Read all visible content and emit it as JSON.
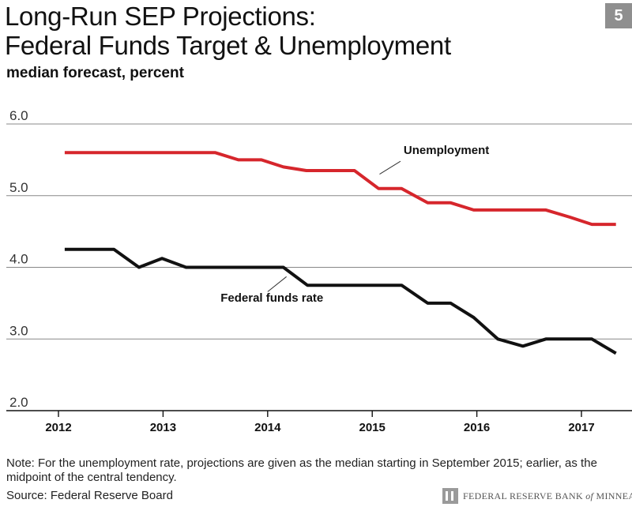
{
  "header": {
    "title": "Long-Run SEP Projections:\nFederal Funds Target & Unemployment",
    "badge": "5",
    "subtitle": "median forecast, percent"
  },
  "footer": {
    "note": "Note: For the unemployment rate, projections are given as the median starting in September 2015; earlier, as the midpoint of the central tendency.",
    "source": "Source: Federal Reserve Board",
    "logo_text_1": "FEDERAL RESERVE BANK",
    "logo_text_2": "of",
    "logo_text_3": "MINNEAPOLIS"
  },
  "chart_data": {
    "type": "line",
    "title": "Long-Run SEP Projections: Federal Funds Target & Unemployment",
    "subtitle": "median forecast, percent",
    "xlabel": "",
    "ylabel": "",
    "xlim": [
      2012,
      2017.35
    ],
    "ylim": [
      2.0,
      6.0
    ],
    "x_ticks": [
      2012,
      2013,
      2014,
      2015,
      2016,
      2017
    ],
    "y_ticks": [
      2.0,
      3.0,
      4.0,
      5.0,
      6.0
    ],
    "y_tick_labels": [
      "2.0",
      "3.0",
      "4.0",
      "5.0",
      "6.0"
    ],
    "grid": "horizontal",
    "colors": {
      "unemployment": "#d6262c",
      "federal_funds": "#111111",
      "grid": "#888888"
    },
    "series": [
      {
        "name": "Unemployment",
        "color": "#d6262c",
        "points": [
          [
            2012.06,
            5.6
          ],
          [
            2012.25,
            5.6
          ],
          [
            2012.5,
            5.6
          ],
          [
            2012.75,
            5.6
          ],
          [
            2013.0,
            5.6
          ],
          [
            2013.25,
            5.6
          ],
          [
            2013.5,
            5.6
          ],
          [
            2013.72,
            5.5
          ],
          [
            2013.94,
            5.5
          ],
          [
            2014.15,
            5.4
          ],
          [
            2014.37,
            5.35
          ],
          [
            2014.6,
            5.35
          ],
          [
            2014.83,
            5.35
          ],
          [
            2015.06,
            5.1
          ],
          [
            2015.28,
            5.1
          ],
          [
            2015.53,
            4.9
          ],
          [
            2015.75,
            4.9
          ],
          [
            2015.97,
            4.8
          ],
          [
            2016.22,
            4.8
          ],
          [
            2016.44,
            4.8
          ],
          [
            2016.66,
            4.8
          ],
          [
            2016.89,
            4.7
          ],
          [
            2017.1,
            4.6
          ],
          [
            2017.33,
            4.6
          ]
        ]
      },
      {
        "name": "Federal funds rate",
        "color": "#111111",
        "points": [
          [
            2012.06,
            4.25
          ],
          [
            2012.3,
            4.25
          ],
          [
            2012.53,
            4.25
          ],
          [
            2012.77,
            4.0
          ],
          [
            2012.99,
            4.125
          ],
          [
            2013.22,
            4.0
          ],
          [
            2013.46,
            4.0
          ],
          [
            2013.7,
            4.0
          ],
          [
            2013.93,
            4.0
          ],
          [
            2014.15,
            4.0
          ],
          [
            2014.38,
            3.75
          ],
          [
            2014.6,
            3.75
          ],
          [
            2014.83,
            3.75
          ],
          [
            2015.06,
            3.75
          ],
          [
            2015.28,
            3.75
          ],
          [
            2015.53,
            3.5
          ],
          [
            2015.75,
            3.5
          ],
          [
            2015.97,
            3.3
          ],
          [
            2016.2,
            3.0
          ],
          [
            2016.44,
            2.9
          ],
          [
            2016.66,
            3.0
          ],
          [
            2016.88,
            3.0
          ],
          [
            2017.1,
            3.0
          ],
          [
            2017.33,
            2.8
          ]
        ]
      }
    ],
    "annotations": [
      {
        "text": "Unemployment",
        "at": [
          2015.3,
          5.58
        ],
        "leader_to": [
          2015.07,
          5.3
        ],
        "leader_from": [
          2015.27,
          5.48
        ]
      },
      {
        "text": "Federal funds rate",
        "at": [
          2013.55,
          3.52
        ],
        "leader_to": [
          2014.18,
          3.87
        ],
        "leader_from": [
          2014.0,
          3.66
        ]
      }
    ]
  }
}
